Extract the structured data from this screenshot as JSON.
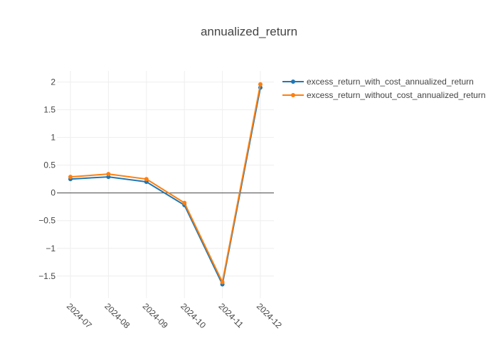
{
  "chart_data": {
    "type": "line",
    "title": "annualized_return",
    "xlabel": "",
    "ylabel": "",
    "categories": [
      "2024-07",
      "2024-08",
      "2024-09",
      "2024-10",
      "2024-11",
      "2024-12"
    ],
    "ylim": [
      -1.9,
      2.2
    ],
    "yticks": [
      2,
      1.5,
      1,
      0.5,
      0,
      -0.5,
      -1,
      -1.5
    ],
    "ytick_labels": [
      "2",
      "1.5",
      "1",
      "0.5",
      "0",
      "−0.5",
      "−1",
      "−1.5"
    ],
    "grid": true,
    "legend_position": "top-right",
    "series": [
      {
        "name": "excess_return_with_cost_annualized_return",
        "color": "#1f77b4",
        "values": [
          0.25,
          0.29,
          0.2,
          -0.22,
          -1.65,
          1.9
        ]
      },
      {
        "name": "excess_return_without_cost_annualized_return",
        "color": "#ff7f0e",
        "values": [
          0.29,
          0.34,
          0.25,
          -0.18,
          -1.61,
          1.96
        ]
      }
    ]
  }
}
